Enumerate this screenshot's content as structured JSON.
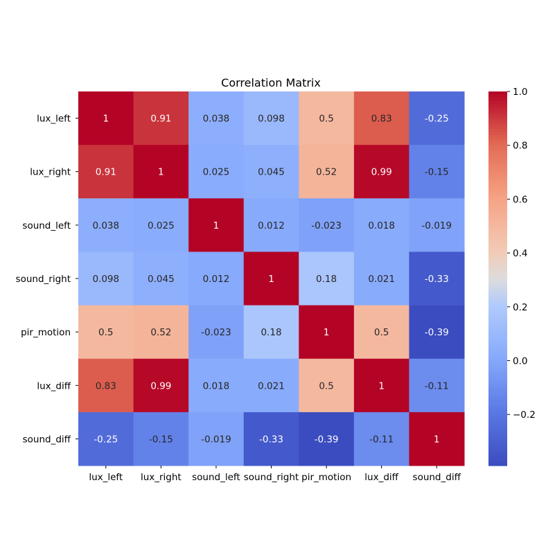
{
  "chart_data": {
    "type": "heatmap",
    "title": "Correlation Matrix",
    "rows": [
      "lux_left",
      "lux_right",
      "sound_left",
      "sound_right",
      "pir_motion",
      "lux_diff",
      "sound_diff"
    ],
    "columns": [
      "lux_left",
      "lux_right",
      "sound_left",
      "sound_right",
      "pir_motion",
      "lux_diff",
      "sound_diff"
    ],
    "values": [
      [
        1,
        0.91,
        0.038,
        0.098,
        0.5,
        0.83,
        -0.25
      ],
      [
        0.91,
        1,
        0.025,
        0.045,
        0.52,
        0.99,
        -0.15
      ],
      [
        0.038,
        0.025,
        1,
        0.012,
        -0.023,
        0.018,
        -0.019
      ],
      [
        0.098,
        0.045,
        0.012,
        1,
        0.18,
        0.021,
        -0.33
      ],
      [
        0.5,
        0.52,
        -0.023,
        0.18,
        1,
        0.5,
        -0.39
      ],
      [
        0.83,
        0.99,
        0.018,
        0.021,
        0.5,
        1,
        -0.11
      ],
      [
        -0.25,
        -0.15,
        -0.019,
        -0.33,
        -0.39,
        -0.11,
        1
      ]
    ],
    "colormap": "coolwarm",
    "colorbar": {
      "range": [
        -0.39,
        1.0
      ],
      "ticks": [
        "1.0",
        "0.8",
        "0.6",
        "0.4",
        "0.2",
        "0.0",
        "−0.2"
      ],
      "tick_values": [
        1.0,
        0.8,
        0.6,
        0.4,
        0.2,
        0.0,
        -0.2
      ]
    },
    "annotated": true,
    "grid": false
  }
}
